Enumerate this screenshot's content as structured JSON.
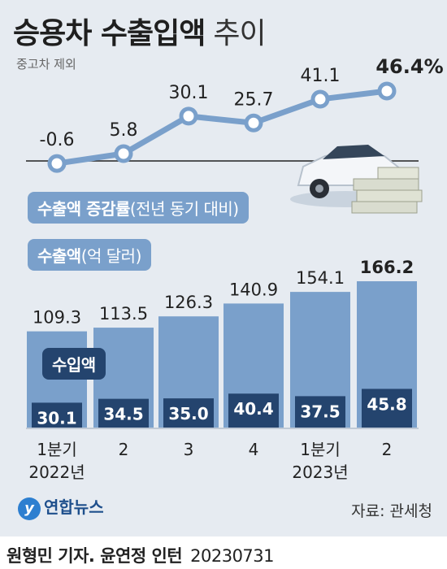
{
  "title": "승용차 수출입액",
  "title_suffix": "추이",
  "subtitle": "중고차 제외",
  "labels": {
    "growth_tag_bold": "수출액 증감률",
    "growth_tag_rest": "(전년 동기 대비)",
    "export_tag_bold": "수출액",
    "export_tag_rest": "(억 달러)",
    "import_tag": "수입액"
  },
  "source": "자료: 관세청",
  "logo": "연합뉴스",
  "footer": {
    "author": "원형민 기자. 윤연정 인턴",
    "date": "20230731"
  },
  "colors": {
    "background": "#e6ebf1",
    "export_bar": "#7aa0cb",
    "import_bar": "#24446e",
    "line": "#7aa0cb"
  },
  "chart_data": [
    {
      "type": "line",
      "categories": [
        "1분기 2022년",
        "2",
        "3",
        "4",
        "1분기 2023년",
        "2"
      ],
      "series": [
        {
          "name": "수출액 증감률",
          "values": [
            -0.6,
            5.8,
            30.1,
            25.7,
            41.1,
            46.4
          ]
        }
      ],
      "value_labels": [
        "-0.6",
        "5.8",
        "30.1",
        "25.7",
        "41.1",
        "46.4%"
      ]
    },
    {
      "type": "bar",
      "categories": [
        "1분기 2022년",
        "2",
        "3",
        "4",
        "1분기 2023년",
        "2"
      ],
      "tick_labels": [
        {
          "quarter": "1분기",
          "year": "2022년"
        },
        {
          "quarter": "2",
          "year": ""
        },
        {
          "quarter": "3",
          "year": ""
        },
        {
          "quarter": "4",
          "year": ""
        },
        {
          "quarter": "1분기",
          "year": "2023년"
        },
        {
          "quarter": "2",
          "year": ""
        }
      ],
      "series": [
        {
          "name": "수출액",
          "values": [
            109.3,
            113.5,
            126.3,
            140.9,
            154.1,
            166.2
          ]
        },
        {
          "name": "수입액",
          "values": [
            30.1,
            34.5,
            35.0,
            40.4,
            37.5,
            45.8
          ]
        }
      ],
      "export_labels": [
        "109.3",
        "113.5",
        "126.3",
        "140.9",
        "154.1",
        "166.2"
      ],
      "import_labels": [
        "30.1",
        "34.5",
        "35.0",
        "40.4",
        "37.5",
        "45.8"
      ]
    }
  ]
}
